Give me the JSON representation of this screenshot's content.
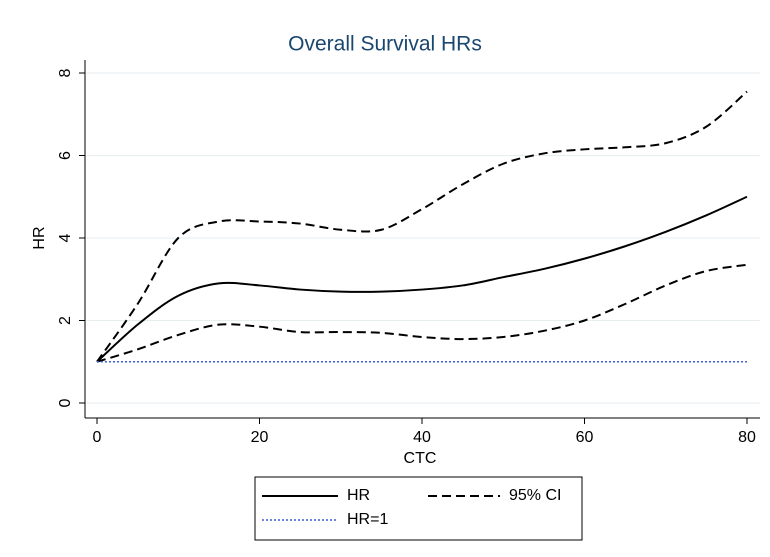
{
  "chart_data": {
    "type": "line",
    "title": "Overall Survival HRs",
    "xlabel": "CTC",
    "ylabel": "HR",
    "x": [
      0,
      5,
      10,
      15,
      20,
      25,
      30,
      35,
      40,
      45,
      50,
      55,
      60,
      65,
      70,
      75,
      80
    ],
    "series": [
      {
        "name": "HR",
        "color": "#000000",
        "style": "solid",
        "values": [
          1,
          1.9,
          2.6,
          2.9,
          2.85,
          2.75,
          2.7,
          2.7,
          2.75,
          2.85,
          3.05,
          3.25,
          3.5,
          3.8,
          4.15,
          4.55,
          5.0
        ]
      },
      {
        "name": "95% CI",
        "color": "#000000",
        "style": "dash",
        "lower": [
          1,
          1.3,
          1.65,
          1.9,
          1.85,
          1.72,
          1.72,
          1.7,
          1.6,
          1.55,
          1.6,
          1.75,
          2.0,
          2.4,
          2.85,
          3.2,
          3.35
        ],
        "upper": [
          1,
          2.4,
          4.0,
          4.4,
          4.4,
          4.35,
          4.2,
          4.2,
          4.7,
          5.3,
          5.8,
          6.05,
          6.15,
          6.2,
          6.3,
          6.7,
          7.55
        ]
      },
      {
        "name": "HR=1",
        "color": "#3a5fcd",
        "style": "dot",
        "values": [
          1,
          1,
          1,
          1,
          1,
          1,
          1,
          1,
          1,
          1,
          1,
          1,
          1,
          1,
          1,
          1,
          1
        ]
      }
    ],
    "xlim": [
      0,
      80
    ],
    "xticks": [
      0,
      20,
      40,
      60,
      80
    ],
    "ylim": [
      0,
      8
    ],
    "yticks": [
      0,
      2,
      4,
      6,
      8
    ],
    "grid": true
  }
}
